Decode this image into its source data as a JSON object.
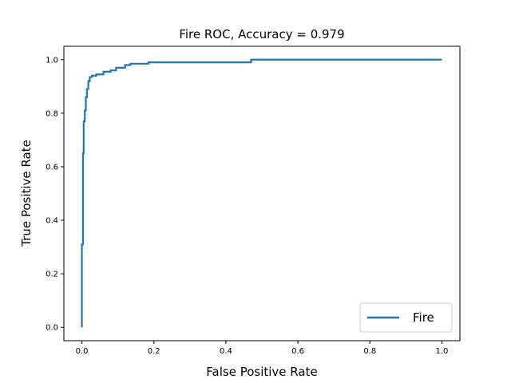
{
  "chart_data": {
    "type": "line",
    "title": "Fire ROC, Accuracy = 0.979",
    "xlabel": "False Positive Rate",
    "ylabel": "True Positive Rate",
    "xlim": [
      -0.05,
      1.05
    ],
    "ylim": [
      -0.05,
      1.05
    ],
    "xticks": [
      0.0,
      0.2,
      0.4,
      0.6,
      0.8,
      1.0
    ],
    "yticks": [
      0.0,
      0.2,
      0.4,
      0.6,
      0.8,
      1.0
    ],
    "xtick_labels": [
      "0.0",
      "0.2",
      "0.4",
      "0.6",
      "0.8",
      "1.0"
    ],
    "ytick_labels": [
      "0.0",
      "0.2",
      "0.4",
      "0.6",
      "0.8",
      "1.0"
    ],
    "grid": false,
    "legend_position": "bottom-right",
    "series": [
      {
        "name": "Fire",
        "color": "#1f77b4",
        "x": [
          0.0,
          0.0,
          0.003,
          0.003,
          0.005,
          0.005,
          0.008,
          0.008,
          0.011,
          0.011,
          0.014,
          0.014,
          0.018,
          0.018,
          0.022,
          0.022,
          0.028,
          0.028,
          0.04,
          0.04,
          0.06,
          0.06,
          0.08,
          0.08,
          0.095,
          0.095,
          0.12,
          0.12,
          0.135,
          0.135,
          0.185,
          0.185,
          0.47,
          0.47,
          1.0
        ],
        "y": [
          0.0,
          0.31,
          0.31,
          0.65,
          0.65,
          0.77,
          0.77,
          0.81,
          0.81,
          0.86,
          0.86,
          0.89,
          0.89,
          0.92,
          0.92,
          0.935,
          0.935,
          0.94,
          0.94,
          0.945,
          0.945,
          0.955,
          0.955,
          0.96,
          0.96,
          0.97,
          0.97,
          0.98,
          0.98,
          0.985,
          0.985,
          0.99,
          0.99,
          1.0,
          1.0
        ]
      }
    ]
  }
}
